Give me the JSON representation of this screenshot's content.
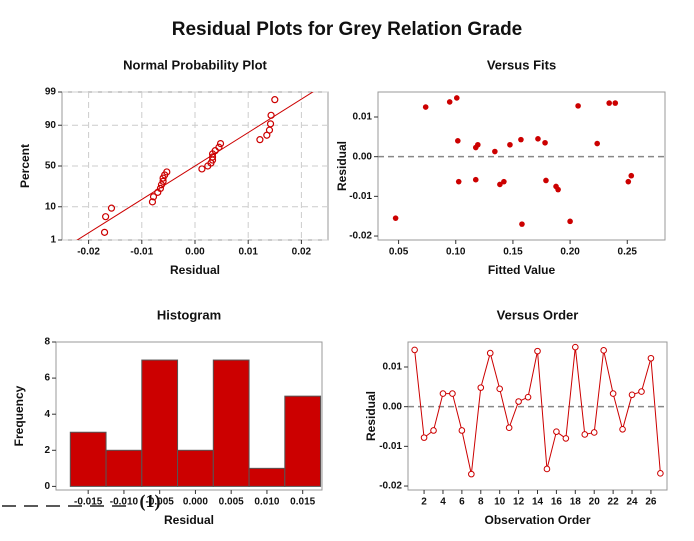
{
  "title": "Residual Plots for Grey Relation Grade",
  "caption": "(1)",
  "chart_data": [
    {
      "type": "probability",
      "title": "Normal Probability Plot",
      "xlabel": "Residual",
      "ylabel": "Percent",
      "x": [
        -0.017,
        -0.0168,
        -0.0157,
        -0.008,
        -0.0078,
        -0.007,
        -0.0065,
        -0.0063,
        -0.006,
        -0.006,
        -0.0057,
        -0.0053,
        0.0013,
        0.0024,
        0.003,
        0.0033,
        0.0033,
        0.0033,
        0.0038,
        0.0045,
        0.0048,
        0.0122,
        0.0135,
        0.014,
        0.0142,
        0.0143,
        0.015
      ],
      "values": [
        1.85,
        5.56,
        9.26,
        12.96,
        16.67,
        20.37,
        24.07,
        27.78,
        31.48,
        35.19,
        38.89,
        42.59,
        46.3,
        50,
        53.7,
        57.41,
        61.11,
        64.81,
        68.52,
        72.22,
        75.93,
        79.63,
        83.33,
        87.04,
        90.74,
        94.44,
        98.15
      ],
      "fit_line": {
        "x": [
          -0.025,
          0.025
        ],
        "y": [
          0.43,
          99.57
        ]
      },
      "color": "#cc0000",
      "grid": true,
      "xlim": [
        -0.025,
        0.025
      ],
      "ylim": [
        1,
        99
      ],
      "xticks": [
        -0.02,
        -0.01,
        {
          "value": 0,
          "label": "0.00"
        },
        0.01,
        0.02
      ],
      "yticks": [
        1,
        10,
        50,
        90,
        99
      ]
    },
    {
      "type": "scatter",
      "title": "Versus Fits",
      "xlabel": "Fitted Value",
      "ylabel": "Residual",
      "x": [
        0.0474,
        0.0737,
        0.0947,
        0.1009,
        0.1018,
        0.1026,
        0.1175,
        0.1193,
        0.1175,
        0.1342,
        0.1386,
        0.1421,
        0.1474,
        0.157,
        0.1579,
        0.1719,
        0.1781,
        0.1789,
        0.1877,
        0.1895,
        0.2,
        0.207,
        0.2237,
        0.2342,
        0.2395,
        0.2509,
        0.2535
      ],
      "values": [
        -0.0155,
        0.0125,
        0.0138,
        0.0148,
        0.004,
        -0.0063,
        0.0023,
        0.003,
        -0.0058,
        0.0013,
        -0.007,
        -0.0063,
        0.003,
        0.0043,
        -0.017,
        0.0045,
        0.0035,
        -0.006,
        -0.0075,
        -0.0083,
        -0.0163,
        0.0128,
        0.0033,
        0.0135,
        0.0135,
        -0.0063,
        -0.0048
      ],
      "color": "#cc0000",
      "reference_line": 0,
      "xlim": [
        0.032,
        0.283
      ],
      "ylim": [
        -0.021,
        0.0163
      ],
      "xticks": [
        0.05,
        {
          "value": 0.1,
          "label": "0.10"
        },
        0.15,
        {
          "value": 0.2,
          "label": "0.20"
        },
        0.25
      ],
      "yticks": [
        0.01,
        {
          "value": 0,
          "label": "0.00"
        },
        -0.01,
        -0.02
      ]
    },
    {
      "type": "histogram",
      "title": "Histogram",
      "xlabel": "Residual",
      "ylabel": "Frequency",
      "bins": [
        -0.0175,
        -0.0125,
        -0.0075,
        -0.0025,
        0.0025,
        0.0075,
        0.0125,
        0.0175
      ],
      "values": [
        3,
        2,
        7,
        2,
        7,
        1,
        5
      ],
      "color": "#cc0000",
      "xlim": [
        -0.0195,
        0.0177
      ],
      "ylim": [
        -0.2,
        8
      ],
      "xticks": [
        -0.015,
        {
          "value": -0.01,
          "label": "-0.010"
        },
        -0.005,
        {
          "value": 0,
          "label": "0.000"
        },
        0.005,
        {
          "value": 0.01,
          "label": "0.010"
        },
        0.015
      ],
      "yticks": [
        0,
        2,
        4,
        6,
        8
      ]
    },
    {
      "type": "line",
      "title": "Versus Order",
      "xlabel": "Observation Order",
      "ylabel": "Residual",
      "x": [
        1,
        2,
        3,
        4,
        5,
        6,
        7,
        8,
        9,
        10,
        11,
        12,
        13,
        14,
        15,
        16,
        17,
        18,
        19,
        20,
        21,
        22,
        23,
        24,
        25,
        26,
        27
      ],
      "values": [
        0.0143,
        -0.0078,
        -0.006,
        0.0033,
        0.0033,
        -0.006,
        -0.017,
        0.0048,
        0.0135,
        0.0045,
        -0.0053,
        0.0013,
        0.0024,
        0.014,
        -0.0157,
        -0.0063,
        -0.008,
        0.015,
        -0.007,
        -0.0065,
        0.0142,
        0.0033,
        -0.0057,
        0.003,
        0.0038,
        0.0122,
        -0.0168
      ],
      "color": "#cc0000",
      "reference_line": 0,
      "xlim": [
        0.3,
        27.7
      ],
      "ylim": [
        -0.021,
        0.0163
      ],
      "xticks": [
        2,
        4,
        6,
        8,
        10,
        12,
        14,
        16,
        18,
        20,
        22,
        24,
        26
      ],
      "yticks": [
        0.01,
        {
          "value": 0,
          "label": "0.00"
        },
        -0.01,
        -0.02
      ]
    }
  ]
}
